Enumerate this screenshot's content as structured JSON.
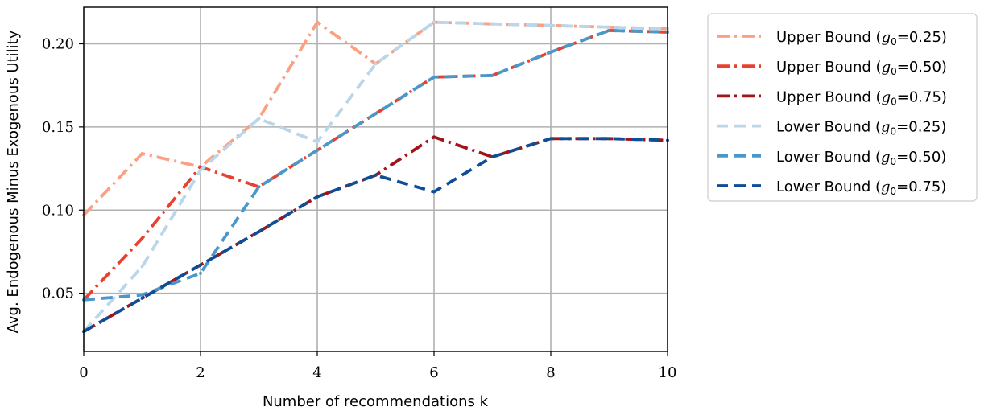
{
  "chart_data": {
    "type": "line",
    "xlabel": "Number of recommendations k",
    "ylabel": "Avg. Endogenous Minus Exogenous Utility",
    "xlim": [
      0,
      10
    ],
    "ylim": [
      0.015,
      0.222
    ],
    "xticks": [
      0,
      2,
      4,
      6,
      8,
      10
    ],
    "yticks": [
      0.05,
      0.1,
      0.15,
      0.2
    ],
    "ytick_labels": [
      "0.05",
      "0.10",
      "0.15",
      "0.20"
    ],
    "grid": true,
    "legend_position": "outside-right-top",
    "x": [
      0,
      1,
      2,
      3,
      4,
      5,
      6,
      7,
      8,
      9,
      10
    ],
    "series": [
      {
        "name": "Upper Bound (g0=0.25)",
        "bound": "Upper Bound",
        "g0": "0.25",
        "color": "#fca082",
        "dash": "dashdot",
        "values": [
          0.097,
          0.134,
          0.126,
          0.155,
          0.213,
          0.188,
          0.213,
          0.212,
          0.211,
          0.21,
          0.209
        ]
      },
      {
        "name": "Upper Bound (g0=0.50)",
        "bound": "Upper Bound",
        "g0": "0.50",
        "color": "#e8412f",
        "dash": "dashdot",
        "values": [
          0.046,
          0.083,
          0.126,
          0.114,
          0.136,
          0.158,
          0.18,
          0.181,
          0.195,
          0.208,
          0.207
        ]
      },
      {
        "name": "Upper Bound (g0=0.75)",
        "bound": "Upper Bound",
        "g0": "0.75",
        "color": "#a11419",
        "dash": "dashdot",
        "values": [
          0.027,
          0.047,
          0.067,
          0.087,
          0.108,
          0.121,
          0.144,
          0.132,
          0.143,
          0.143,
          0.142
        ]
      },
      {
        "name": "Lower Bound (g0=0.25)",
        "bound": "Lower Bound",
        "g0": "0.25",
        "color": "#b9d6ea",
        "dash": "dashed",
        "values": [
          0.027,
          0.066,
          0.124,
          0.155,
          0.141,
          0.188,
          0.213,
          0.212,
          0.211,
          0.21,
          0.209
        ]
      },
      {
        "name": "Lower Bound (g0=0.50)",
        "bound": "Lower Bound",
        "g0": "0.50",
        "color": "#4a98c9",
        "dash": "dashed",
        "values": [
          0.046,
          0.049,
          0.062,
          0.114,
          0.136,
          0.158,
          0.18,
          0.181,
          0.195,
          0.208,
          0.207
        ]
      },
      {
        "name": "Lower Bound (g0=0.75)",
        "bound": "Lower Bound",
        "g0": "0.75",
        "color": "#0f4d94",
        "dash": "dashed",
        "values": [
          0.027,
          0.047,
          0.067,
          0.087,
          0.108,
          0.121,
          0.111,
          0.132,
          0.143,
          0.143,
          0.142
        ]
      }
    ]
  }
}
